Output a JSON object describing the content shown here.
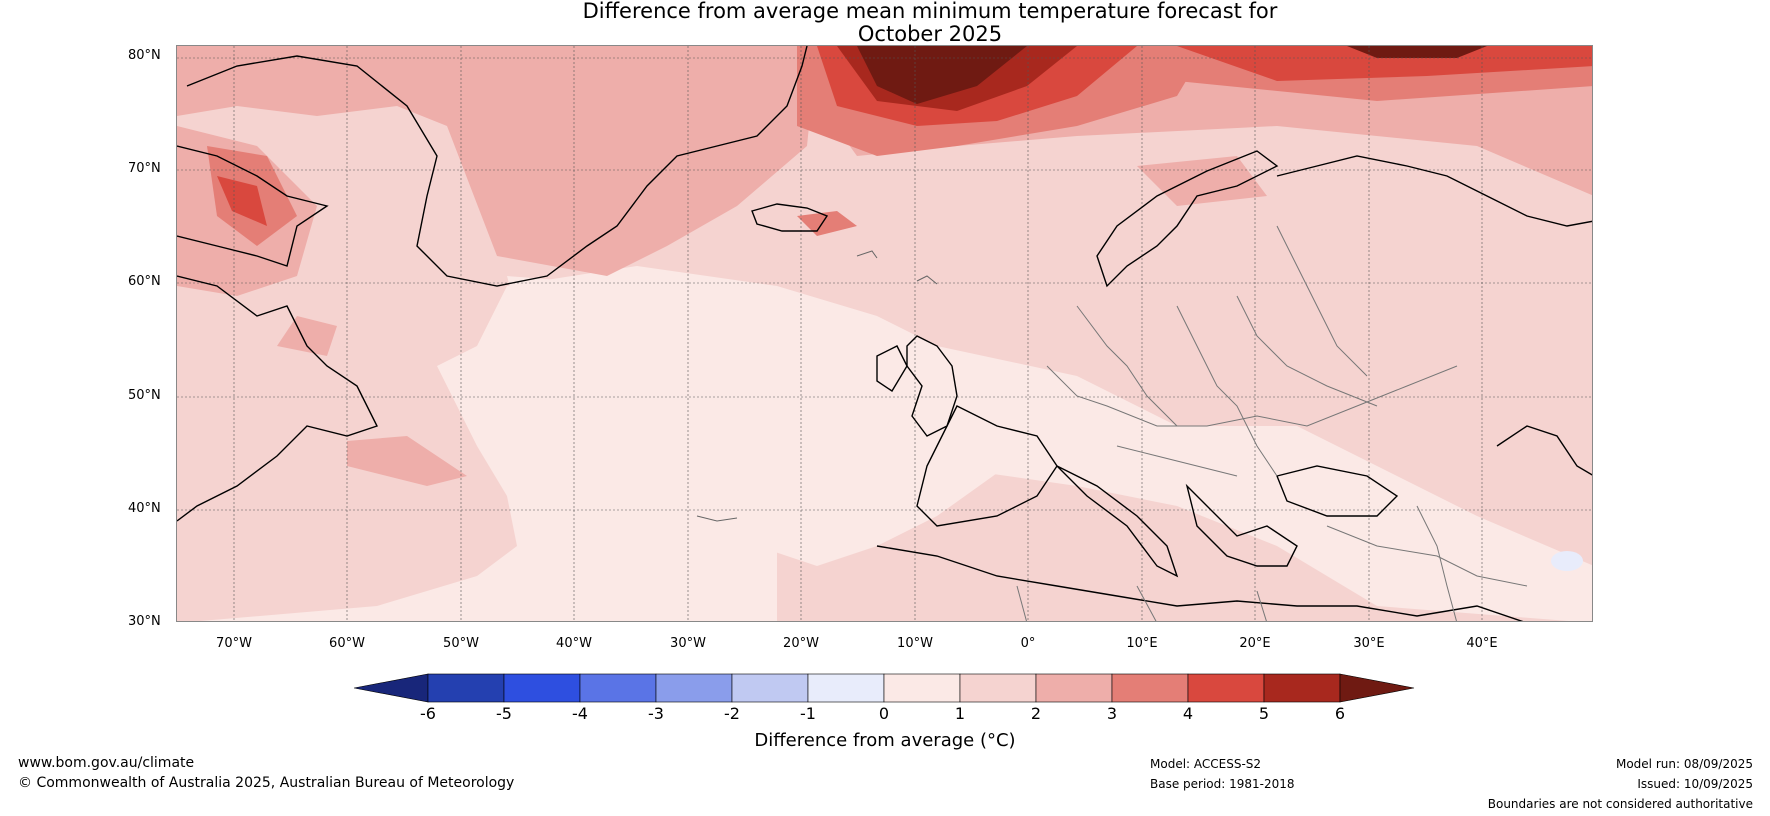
{
  "title_line1": "Difference from average mean minimum temperature forecast for",
  "title_line2": "October 2025",
  "lat_labels": [
    "80°N",
    "70°N",
    "60°N",
    "50°N",
    "40°N",
    "30°N"
  ],
  "lon_labels": [
    "70°W",
    "60°W",
    "50°W",
    "40°W",
    "30°W",
    "20°W",
    "10°W",
    "0°",
    "10°E",
    "20°E",
    "30°E",
    "40°E"
  ],
  "colorbar": {
    "ticks": [
      "-6",
      "-5",
      "-4",
      "-3",
      "-2",
      "-1",
      "0",
      "1",
      "2",
      "3",
      "4",
      "5",
      "6"
    ],
    "colors": [
      "#18267a",
      "#2440b0",
      "#2e4fe0",
      "#5a74e6",
      "#8a9deb",
      "#c0c9f2",
      "#e8ecfb",
      "#fbe9e6",
      "#f5d3d0",
      "#eeaeaa",
      "#e47e76",
      "#d9483e",
      "#a8281e",
      "#6f1a12"
    ],
    "title": "Difference from average (°C)"
  },
  "footer": {
    "url": "www.bom.gov.au/climate",
    "copyright": "© Commonwealth of Australia 2025, Australian Bureau of Meteorology",
    "model": "Model: ACCESS-S2",
    "base_period": "Base period: 1981-2018",
    "model_run": "Model run: 08/09/2025",
    "issued": "Issued: 10/09/2025",
    "disclaimer": "Boundaries are not considered authoritative"
  }
}
